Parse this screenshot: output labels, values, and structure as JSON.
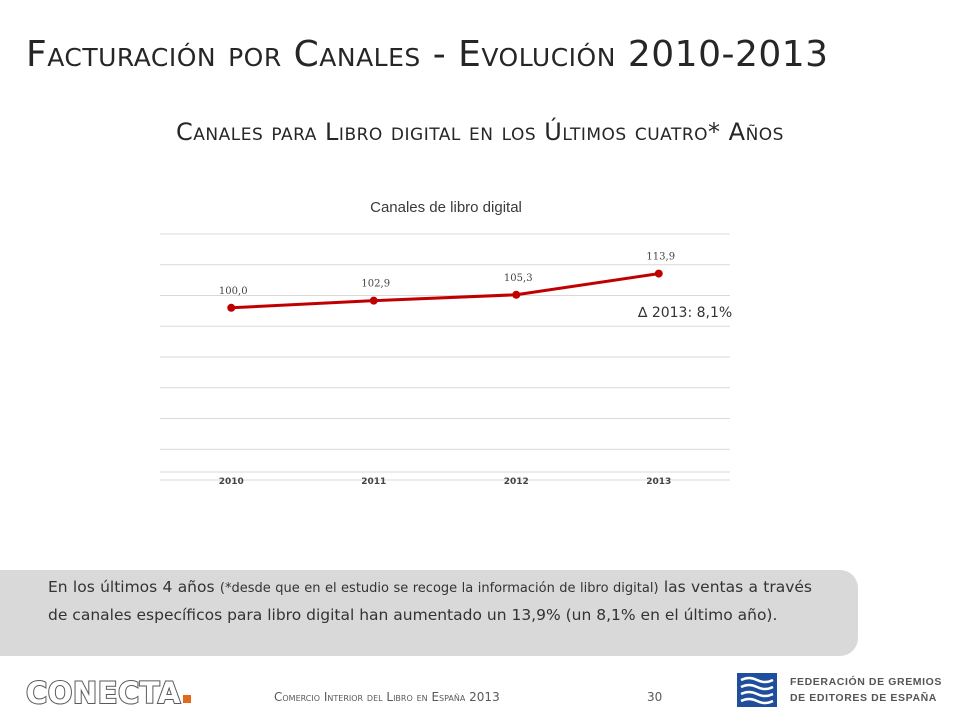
{
  "slide": {
    "title": "Facturación por Canales - Evolución 2010-2013",
    "subtitle": "Canales para Libro digital en los Últimos cuatro* Años"
  },
  "chart_data": {
    "type": "line",
    "title": "Canales de libro digital",
    "categories": [
      "2010",
      "2011",
      "2012",
      "2013"
    ],
    "values": [
      100.0,
      102.9,
      105.3,
      113.9
    ],
    "value_labels": [
      "100,0",
      "102,9",
      "105,3",
      "113,9"
    ],
    "xlabel": "",
    "ylabel": "",
    "ylim": [
      30,
      130
    ],
    "grid": true,
    "legend": "none",
    "annotation": "∆ 2013:  8,1%",
    "line_color": "#c00000"
  },
  "note": {
    "lead": "En los últimos 4 años ",
    "aside": "(*desde que en el estudio se recoge la información de libro digital)",
    "rest": " las ventas a través de canales específicos para libro digital han aumentado un 13,9% (un 8,1% en el último año)."
  },
  "footer": {
    "logo_text": "CONECTA",
    "caption": "Comercio Interior del Libro en España 2013",
    "page_number": "30",
    "federation_line1": "FEDERACIÓN DE GREMIOS",
    "federation_line2": "DE EDITORES DE ESPAÑA"
  },
  "colors": {
    "accent": "#c00000",
    "note_background": "#d9d9d9",
    "logo_dot": "#e06a1a",
    "federation_blue": "#1f4e9c"
  }
}
